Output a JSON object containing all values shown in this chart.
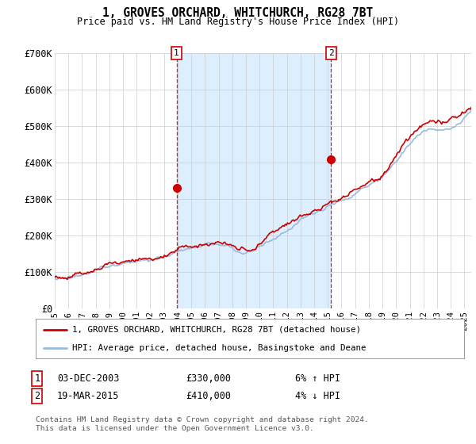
{
  "title": "1, GROVES ORCHARD, WHITCHURCH, RG28 7BT",
  "subtitle": "Price paid vs. HM Land Registry's House Price Index (HPI)",
  "legend_label_red": "1, GROVES ORCHARD, WHITCHURCH, RG28 7BT (detached house)",
  "legend_label_blue": "HPI: Average price, detached house, Basingstoke and Deane",
  "footer": "Contains HM Land Registry data © Crown copyright and database right 2024.\nThis data is licensed under the Open Government Licence v3.0.",
  "sale1_date": "03-DEC-2003",
  "sale1_price": "£330,000",
  "sale1_hpi": "6% ↑ HPI",
  "sale2_date": "19-MAR-2015",
  "sale2_price": "£410,000",
  "sale2_hpi": "4% ↓ HPI",
  "ylim": [
    0,
    700000
  ],
  "yticks": [
    0,
    100000,
    200000,
    300000,
    400000,
    500000,
    600000,
    700000
  ],
  "ytick_labels": [
    "£0",
    "£100K",
    "£200K",
    "£300K",
    "£400K",
    "£500K",
    "£600K",
    "£700K"
  ],
  "background_color": "#ffffff",
  "grid_color": "#cccccc",
  "red_color": "#cc0000",
  "blue_color": "#99bbdd",
  "shade_color": "#ddeeff",
  "sale1_x": 2003.92,
  "sale2_x": 2015.22,
  "sale1_y": 330000,
  "sale2_y": 410000,
  "xmin": 1995.0,
  "xmax": 2025.5,
  "xticks": [
    1995,
    1996,
    1997,
    1998,
    1999,
    2000,
    2001,
    2002,
    2003,
    2004,
    2005,
    2006,
    2007,
    2008,
    2009,
    2010,
    2011,
    2012,
    2013,
    2014,
    2015,
    2016,
    2017,
    2018,
    2019,
    2020,
    2021,
    2022,
    2023,
    2024,
    2025
  ]
}
